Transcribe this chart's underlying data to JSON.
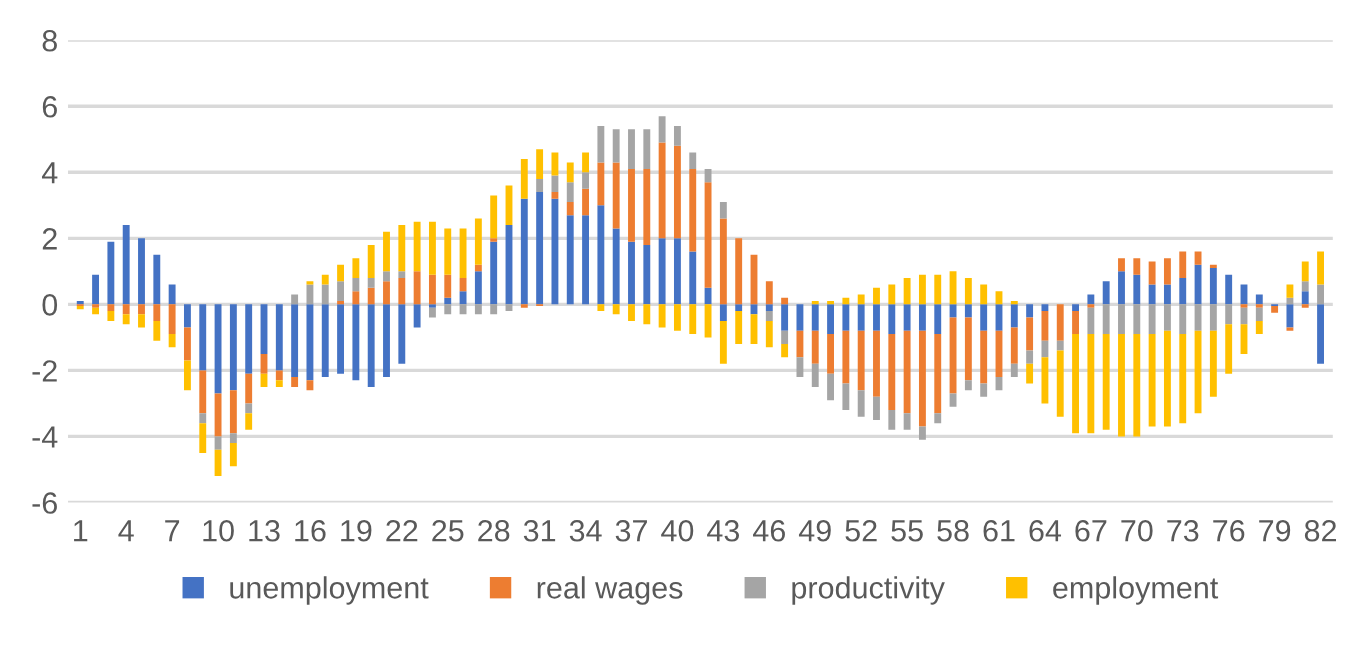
{
  "chart_data": {
    "type": "bar",
    "stacked": true,
    "categories": [
      "1",
      null,
      null,
      "4",
      null,
      null,
      "7",
      null,
      null,
      "10",
      null,
      null,
      "13",
      null,
      null,
      "16",
      null,
      null,
      "19",
      null,
      null,
      "22",
      null,
      null,
      "25",
      null,
      null,
      "28",
      null,
      null,
      "31",
      null,
      null,
      "34",
      null,
      null,
      "37",
      null,
      null,
      "40",
      null,
      null,
      "43",
      null,
      null,
      "46",
      null,
      null,
      "49",
      null,
      null,
      "52",
      null,
      null,
      "55",
      null,
      null,
      "58",
      null,
      null,
      "61",
      null,
      null,
      "64",
      null,
      null,
      "67",
      null,
      null,
      "70",
      null,
      null,
      "73",
      null,
      null,
      "76",
      null,
      null,
      "79",
      null,
      null,
      "82"
    ],
    "series": [
      {
        "name": "unemployment",
        "color": "#4472c4",
        "values": [
          0.1,
          0.9,
          1.9,
          2.4,
          2.0,
          1.5,
          0.6,
          -0.7,
          -2.0,
          -2.7,
          -2.6,
          -2.1,
          -1.5,
          -2.0,
          -2.2,
          -2.3,
          -2.2,
          -2.1,
          -2.3,
          -2.5,
          -2.2,
          -1.8,
          -0.7,
          -0.1,
          0.2,
          0.4,
          1.0,
          1.9,
          2.4,
          3.2,
          3.4,
          3.2,
          2.7,
          2.7,
          3.0,
          2.3,
          1.9,
          1.8,
          2.0,
          2.0,
          1.6,
          0.5,
          -0.5,
          -0.2,
          -0.3,
          -0.2,
          -0.8,
          -0.8,
          -0.8,
          -0.9,
          -0.8,
          -0.8,
          -0.8,
          -0.9,
          -0.8,
          -0.8,
          -0.9,
          -0.4,
          -0.4,
          -0.8,
          -0.8,
          -0.7,
          -0.4,
          -0.2,
          0,
          -0.2,
          0.3,
          0.7,
          1.0,
          0.9,
          0.6,
          0.6,
          0.8,
          1.2,
          1.1,
          0.9,
          0.6,
          0.3,
          -0.05,
          -0.7,
          0.4,
          -1.8
        ]
      },
      {
        "name": "real wages",
        "color": "#ed7d31",
        "values": [
          -0.05,
          -0.1,
          -0.2,
          -0.3,
          -0.3,
          -0.5,
          -0.9,
          -1.0,
          -1.3,
          -1.3,
          -1.3,
          -0.9,
          -0.6,
          -0.3,
          -0.3,
          -0.3,
          0,
          0.1,
          0.4,
          0.5,
          0.7,
          0.8,
          1.0,
          0.9,
          0.7,
          0.4,
          0.2,
          0.1,
          0,
          -0.1,
          -0.05,
          0.2,
          0.4,
          0.8,
          1.3,
          2.0,
          2.2,
          2.3,
          2.9,
          2.8,
          2.5,
          3.2,
          2.6,
          2.0,
          1.5,
          0.7,
          0.2,
          -0.8,
          -1.0,
          -1.2,
          -1.6,
          -1.8,
          -2.0,
          -2.3,
          -2.5,
          -2.9,
          -2.4,
          -2.3,
          -1.9,
          -1.6,
          -1.4,
          -1.1,
          -1.0,
          -0.9,
          -1.1,
          -0.7,
          -0.1,
          0,
          0.4,
          0.5,
          0.7,
          0.8,
          0.8,
          0.4,
          0.1,
          0,
          -0.1,
          -0.1,
          -0.2,
          -0.1,
          -0.1,
          0
        ]
      },
      {
        "name": "productivity",
        "color": "#a5a5a5",
        "values": [
          0,
          0,
          0,
          0,
          0,
          0,
          0,
          0,
          -0.3,
          -0.4,
          -0.3,
          -0.3,
          0,
          0,
          0.3,
          0.6,
          0.6,
          0.6,
          0.4,
          0.3,
          0.3,
          0.2,
          0,
          -0.3,
          -0.3,
          -0.3,
          -0.3,
          -0.3,
          -0.2,
          0,
          0.4,
          0.5,
          0.6,
          0.5,
          1.1,
          1.0,
          1.2,
          1.2,
          0.8,
          0.6,
          0.5,
          0.4,
          0.5,
          0,
          0,
          -0.3,
          -0.4,
          -0.6,
          -0.7,
          -0.8,
          -0.8,
          -0.8,
          -0.7,
          -0.6,
          -0.5,
          -0.4,
          -0.3,
          -0.4,
          -0.3,
          -0.4,
          -0.4,
          -0.4,
          -0.4,
          -0.5,
          -0.3,
          0,
          -0.8,
          -0.9,
          -0.9,
          -0.9,
          -0.9,
          -0.8,
          -0.9,
          -0.8,
          -0.8,
          -0.6,
          -0.5,
          -0.4,
          0,
          0.2,
          0.3,
          0.6
        ]
      },
      {
        "name": "employment",
        "color": "#ffc000",
        "values": [
          -0.1,
          -0.2,
          -0.3,
          -0.3,
          -0.4,
          -0.6,
          -0.4,
          -0.9,
          -0.9,
          -0.8,
          -0.7,
          -0.5,
          -0.4,
          -0.2,
          0,
          0.1,
          0.3,
          0.5,
          0.6,
          1.0,
          1.2,
          1.4,
          1.5,
          1.6,
          1.4,
          1.5,
          1.4,
          1.3,
          1.2,
          1.2,
          0.9,
          0.7,
          0.6,
          0.6,
          -0.2,
          -0.3,
          -0.5,
          -0.6,
          -0.7,
          -0.8,
          -0.9,
          -1.0,
          -1.3,
          -1.0,
          -0.9,
          -0.8,
          -0.4,
          0,
          0.1,
          0.1,
          0.2,
          0.3,
          0.5,
          0.6,
          0.8,
          0.9,
          0.9,
          1.0,
          0.8,
          0.6,
          0.4,
          0.1,
          -0.6,
          -1.4,
          -2.0,
          -3.0,
          -3.0,
          -2.9,
          -3.1,
          -3.1,
          -2.8,
          -2.9,
          -2.7,
          -2.5,
          -2.0,
          -1.5,
          -0.9,
          -0.4,
          0,
          0.4,
          0.6,
          1.0
        ]
      }
    ],
    "ylim": [
      -6,
      8
    ],
    "yticks": [
      -6,
      -4,
      -2,
      0,
      2,
      4,
      6,
      8
    ],
    "grid": "y",
    "legend": "bottom"
  }
}
